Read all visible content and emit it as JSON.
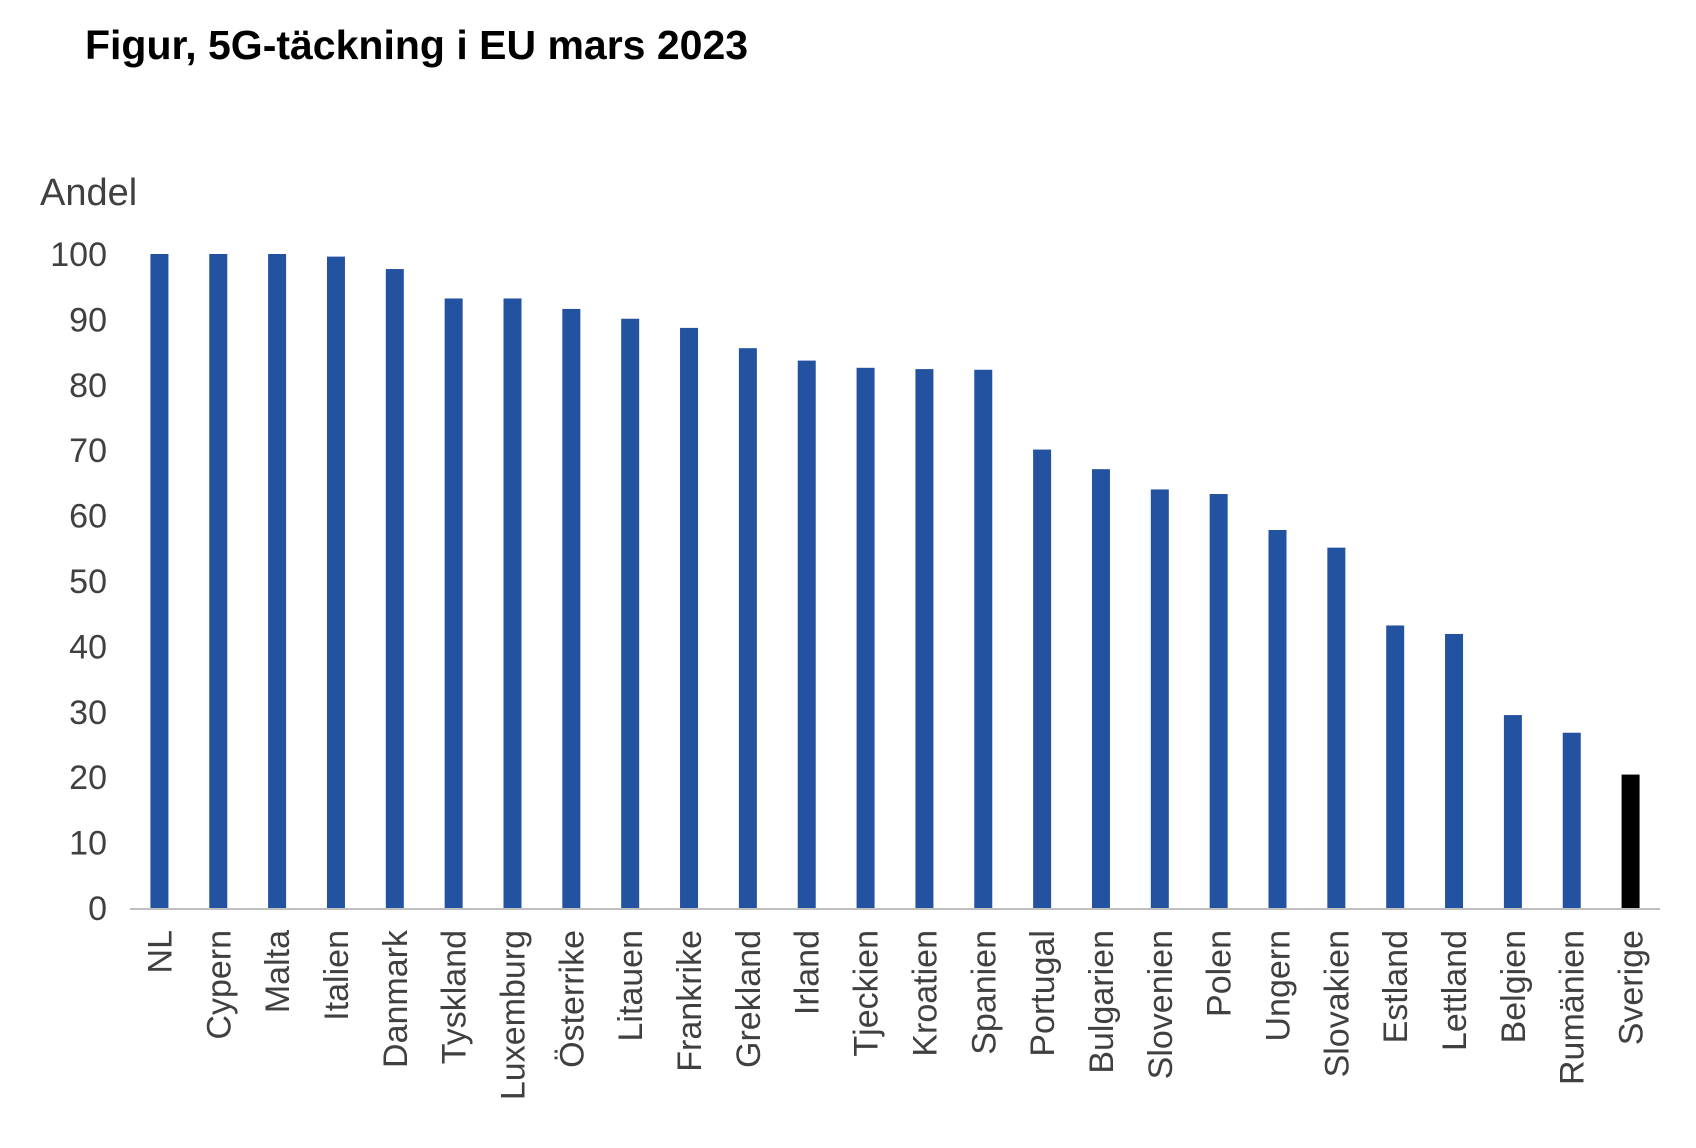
{
  "chart_data": {
    "type": "bar",
    "title": "Figur, 5G-täckning i EU mars 2023",
    "ylabel": "Andel",
    "xlabel": "",
    "ylim": [
      0,
      100
    ],
    "yticks": [
      0,
      10,
      20,
      30,
      40,
      50,
      60,
      70,
      80,
      90,
      100
    ],
    "grid": false,
    "categories": [
      "NL",
      "Cypern",
      "Malta",
      "Italien",
      "Danmark",
      "Tyskland",
      "Luxemburg",
      "Österrike",
      "Litauen",
      "Frankrike",
      "Grekland",
      "Irland",
      "Tjeckien",
      "Kroatien",
      "Spanien",
      "Portugal",
      "Bulgarien",
      "Slovenien",
      "Polen",
      "Ungern",
      "Slovakien",
      "Estland",
      "Lettland",
      "Belgien",
      "Rumänien",
      "Sverige"
    ],
    "values": [
      100,
      100,
      100,
      99.6,
      97.7,
      93.2,
      93.2,
      91.6,
      90.1,
      88.7,
      85.6,
      83.7,
      82.6,
      82.4,
      82.3,
      70.1,
      67.1,
      64,
      63.3,
      57.8,
      55.1,
      43.2,
      41.9,
      29.5,
      26.8,
      20.4
    ],
    "colors": {
      "bar": "#2352A1",
      "highlight": "#000000",
      "axis": "#BFBFBF",
      "text": "#404040"
    },
    "highlight_category": "Sverige"
  }
}
